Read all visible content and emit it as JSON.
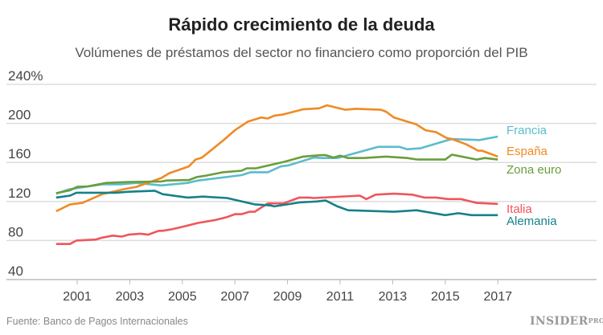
{
  "chart_data": {
    "type": "line",
    "title": "Rápido crecimiento de la deuda",
    "subtitle": "Volúmenes de préstamos del sector no financiero como proporción del PIB",
    "xlabel": "",
    "ylabel": "",
    "ylim": [
      40,
      240
    ],
    "yticks": [
      "240%",
      "200",
      "160",
      "120",
      "80",
      "40"
    ],
    "ytick_values": [
      240,
      200,
      160,
      120,
      80,
      40
    ],
    "xticks": [
      "2001",
      "2003",
      "2005",
      "2007",
      "2009",
      "2011",
      "2013",
      "2015",
      "2017"
    ],
    "xtick_values": [
      2001,
      2003,
      2005,
      2007,
      2009,
      2011,
      2013,
      2015,
      2017
    ],
    "grid": "horizontal",
    "legend": "direct labels at right",
    "series": [
      {
        "name": "Francia",
        "color": "#5bbccc",
        "points": [
          [
            2000.2,
            128
          ],
          [
            2000.7,
            132.5
          ],
          [
            2001.95,
            137.5
          ],
          [
            2002.65,
            137.5
          ],
          [
            2003.25,
            139
          ],
          [
            2004.2,
            136.5
          ],
          [
            2005.2,
            139
          ],
          [
            2005.6,
            141.5
          ],
          [
            2007.25,
            147
          ],
          [
            2007.6,
            150
          ],
          [
            2008.25,
            150
          ],
          [
            2008.75,
            156
          ],
          [
            2009.05,
            157
          ],
          [
            2010.0,
            165
          ],
          [
            2010.3,
            164.5
          ],
          [
            2010.9,
            164.5
          ],
          [
            2012.45,
            176
          ],
          [
            2013.25,
            176
          ],
          [
            2013.55,
            173.5
          ],
          [
            2014.05,
            174.5
          ],
          [
            2015.25,
            184
          ],
          [
            2016.3,
            183
          ],
          [
            2017.0,
            186.5
          ]
        ]
      },
      {
        "name": "España",
        "color": "#f08a24",
        "points": [
          [
            2000.2,
            110
          ],
          [
            2000.73,
            117
          ],
          [
            2001.2,
            118.5
          ],
          [
            2001.95,
            127.5
          ],
          [
            2002.85,
            133
          ],
          [
            2003.25,
            135
          ],
          [
            2004.2,
            144
          ],
          [
            2004.5,
            149
          ],
          [
            2005.25,
            156
          ],
          [
            2005.5,
            163
          ],
          [
            2005.75,
            165
          ],
          [
            2006.55,
            182.5
          ],
          [
            2007.0,
            193
          ],
          [
            2007.5,
            202
          ],
          [
            2008.0,
            206
          ],
          [
            2008.25,
            205
          ],
          [
            2008.5,
            208
          ],
          [
            2008.8,
            209
          ],
          [
            2009.6,
            214.5
          ],
          [
            2010.2,
            215.5
          ],
          [
            2010.5,
            218.5
          ],
          [
            2011.2,
            214
          ],
          [
            2011.6,
            215
          ],
          [
            2012.55,
            214
          ],
          [
            2012.75,
            212
          ],
          [
            2013.05,
            206
          ],
          [
            2013.9,
            199
          ],
          [
            2014.25,
            193
          ],
          [
            2014.65,
            191
          ],
          [
            2015.05,
            185
          ],
          [
            2015.25,
            184
          ],
          [
            2015.8,
            178.5
          ],
          [
            2016.25,
            172
          ],
          [
            2016.4,
            172
          ],
          [
            2017.0,
            166
          ]
        ]
      },
      {
        "name": "Zona euro",
        "color": "#6a9e3a",
        "points": [
          [
            2000.2,
            128.5
          ],
          [
            2000.73,
            131.5
          ],
          [
            2001.0,
            135
          ],
          [
            2001.4,
            135.5
          ],
          [
            2002.1,
            139
          ],
          [
            2002.95,
            140
          ],
          [
            2004.2,
            140.5
          ],
          [
            2004.4,
            141.5
          ],
          [
            2005.25,
            142
          ],
          [
            2005.55,
            145
          ],
          [
            2005.9,
            146.5
          ],
          [
            2006.55,
            150
          ],
          [
            2007.25,
            151.5
          ],
          [
            2007.45,
            154
          ],
          [
            2007.8,
            154
          ],
          [
            2008.85,
            160.5
          ],
          [
            2009.6,
            166
          ],
          [
            2010.3,
            167.5
          ],
          [
            2010.45,
            167.5
          ],
          [
            2010.75,
            165
          ],
          [
            2011.0,
            167
          ],
          [
            2011.3,
            164.5
          ],
          [
            2011.9,
            164.5
          ],
          [
            2012.75,
            166
          ],
          [
            2013.55,
            164.5
          ],
          [
            2013.95,
            163
          ],
          [
            2015.0,
            163
          ],
          [
            2015.25,
            168
          ],
          [
            2016.2,
            163
          ],
          [
            2016.5,
            164.5
          ],
          [
            2017.0,
            163
          ]
        ]
      },
      {
        "name": "Italia",
        "color": "#f0555a",
        "points": [
          [
            2000.2,
            76.5
          ],
          [
            2000.73,
            76.5
          ],
          [
            2000.97,
            80
          ],
          [
            2001.7,
            81
          ],
          [
            2001.95,
            83
          ],
          [
            2002.35,
            85
          ],
          [
            2002.7,
            84
          ],
          [
            2002.95,
            86
          ],
          [
            2003.4,
            87
          ],
          [
            2003.7,
            86
          ],
          [
            2004.1,
            90
          ],
          [
            2004.25,
            90
          ],
          [
            2004.6,
            91.5
          ],
          [
            2005.0,
            94
          ],
          [
            2005.6,
            98
          ],
          [
            2006.25,
            101
          ],
          [
            2006.7,
            104
          ],
          [
            2007.0,
            107
          ],
          [
            2007.25,
            107
          ],
          [
            2007.55,
            109.5
          ],
          [
            2007.75,
            109.5
          ],
          [
            2008.25,
            118
          ],
          [
            2008.85,
            118
          ],
          [
            2009.45,
            124
          ],
          [
            2009.8,
            124
          ],
          [
            2010.0,
            123.5
          ],
          [
            2011.75,
            126
          ],
          [
            2012.0,
            122.5
          ],
          [
            2012.35,
            127
          ],
          [
            2013.05,
            128
          ],
          [
            2013.75,
            127
          ],
          [
            2014.2,
            124
          ],
          [
            2014.65,
            124
          ],
          [
            2015.1,
            122.5
          ],
          [
            2015.6,
            122.5
          ],
          [
            2016.2,
            118.5
          ],
          [
            2017.0,
            117.5
          ]
        ]
      },
      {
        "name": "Alemania",
        "color": "#17808a",
        "points": [
          [
            2000.2,
            124
          ],
          [
            2000.73,
            126
          ],
          [
            2000.97,
            129
          ],
          [
            2002.45,
            129
          ],
          [
            2002.95,
            130
          ],
          [
            2003.95,
            131
          ],
          [
            2004.25,
            127.5
          ],
          [
            2005.2,
            124
          ],
          [
            2005.8,
            125
          ],
          [
            2006.7,
            123.5
          ],
          [
            2007.75,
            117
          ],
          [
            2008.35,
            116
          ],
          [
            2008.5,
            115
          ],
          [
            2009.45,
            119
          ],
          [
            2010.1,
            120
          ],
          [
            2010.45,
            121
          ],
          [
            2010.9,
            115
          ],
          [
            2011.3,
            111
          ],
          [
            2013.05,
            109.5
          ],
          [
            2013.9,
            111
          ],
          [
            2015.0,
            106
          ],
          [
            2015.5,
            108
          ],
          [
            2016.0,
            106
          ],
          [
            2017.0,
            106
          ]
        ]
      }
    ]
  },
  "source": "Fuente: Banco de Pagos Internacionales",
  "logo": {
    "text": "INSIDER",
    "sup": "PRO"
  }
}
